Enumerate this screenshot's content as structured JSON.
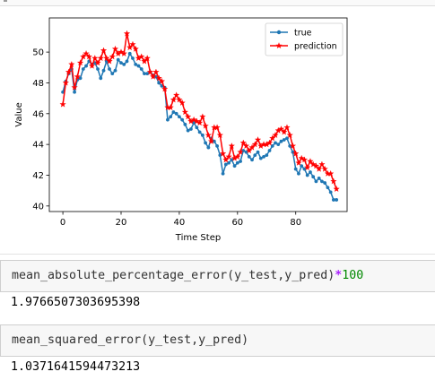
{
  "cells": [
    {
      "code": {
        "func": "mean_absolute_percentage_error",
        "args": "(y_test,y_pred)",
        "operator": "*",
        "number": "100"
      },
      "output": "1.9766507303695398"
    },
    {
      "code": {
        "func": "mean_squared_error",
        "args": "(y_test,y_pred)"
      },
      "output": "1.0371641594473213"
    }
  ],
  "colors": {
    "true": "#1f77b4",
    "prediction": "#ff0000"
  },
  "chart_data": {
    "type": "line",
    "xlabel": "Time Step",
    "ylabel": "Value",
    "xlim": [
      -4.65,
      97.65
    ],
    "ylim": [
      39.64,
      52.22
    ],
    "xticks": [
      0,
      20,
      40,
      60,
      80
    ],
    "yticks": [
      40,
      42,
      44,
      46,
      48,
      50
    ],
    "legend": "upper-right",
    "series": [
      {
        "name": "true",
        "marker": "dot",
        "values": [
          47.4,
          48.1,
          48.6,
          48.9,
          47.4,
          48.2,
          48.3,
          48.9,
          49.1,
          49.4,
          49.2,
          49.3,
          48.9,
          48.3,
          48.8,
          49.4,
          48.9,
          48.6,
          48.8,
          49.5,
          49.3,
          49.2,
          49.4,
          49.9,
          49.6,
          49.2,
          49.1,
          48.9,
          48.6,
          48.6,
          48.7,
          48.5,
          48.4,
          48.0,
          47.8,
          47.7,
          45.6,
          45.8,
          46.1,
          46.0,
          45.8,
          45.6,
          45.3,
          44.9,
          45.0,
          45.4,
          45.1,
          44.8,
          44.6,
          44.1,
          43.8,
          44.4,
          44.2,
          43.9,
          43.3,
          42.1,
          42.7,
          42.8,
          43.0,
          42.6,
          42.8,
          42.9,
          43.6,
          43.5,
          43.2,
          43.0,
          43.3,
          43.5,
          43.1,
          43.2,
          43.3,
          43.6,
          43.9,
          44.1,
          44.0,
          44.2,
          44.3,
          44.4,
          43.9,
          43.5,
          42.4,
          42.1,
          42.6,
          42.4,
          42.0,
          42.2,
          41.9,
          41.6,
          41.8,
          41.6,
          41.5,
          41.2,
          40.9,
          40.4,
          40.4
        ]
      },
      {
        "name": "prediction",
        "marker": "star",
        "values": [
          46.6,
          48.0,
          48.7,
          49.2,
          47.7,
          48.4,
          49.3,
          49.7,
          49.9,
          49.7,
          49.1,
          49.6,
          49.3,
          49.6,
          50.1,
          49.6,
          49.4,
          49.7,
          50.2,
          49.9,
          50.0,
          49.9,
          51.2,
          50.3,
          50.5,
          50.2,
          49.6,
          49.7,
          49.4,
          49.6,
          48.7,
          48.4,
          48.7,
          48.3,
          48.1,
          47.6,
          46.4,
          46.4,
          46.9,
          47.2,
          46.9,
          46.7,
          46.1,
          45.8,
          45.5,
          45.6,
          45.5,
          45.4,
          45.8,
          45.2,
          44.6,
          44.2,
          45.1,
          45.1,
          44.6,
          43.4,
          43.0,
          43.2,
          43.9,
          43.1,
          43.2,
          43.5,
          44.1,
          43.9,
          43.6,
          43.8,
          44.0,
          44.3,
          43.9,
          44.0,
          44.0,
          44.1,
          44.4,
          44.6,
          44.9,
          45.0,
          44.8,
          45.1,
          44.6,
          43.9,
          43.4,
          42.8,
          43.1,
          43.0,
          42.5,
          42.9,
          42.7,
          42.6,
          42.4,
          42.7,
          42.4,
          42.1,
          42.1,
          41.6,
          41.1
        ]
      }
    ]
  }
}
